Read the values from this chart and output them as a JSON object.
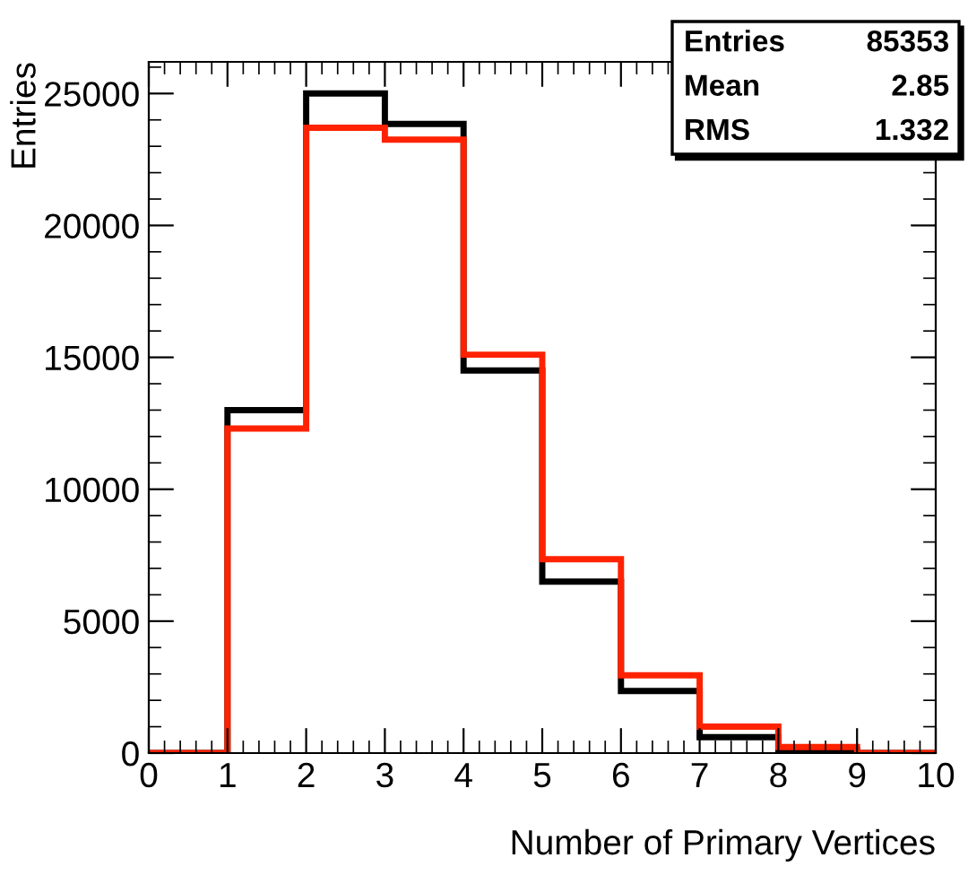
{
  "chart_data": {
    "type": "histogram",
    "xlabel": "Number of Primary Vertices",
    "ylabel": "Entries",
    "bins": [
      0,
      1,
      2,
      3,
      4,
      5,
      6,
      7,
      8,
      9,
      10
    ],
    "series": [
      {
        "color": "#000000",
        "values": [
          0,
          13000,
          25000,
          23850,
          14500,
          6500,
          2350,
          600,
          100,
          0
        ]
      },
      {
        "color": "#ff2200",
        "values": [
          0,
          12300,
          23700,
          23250,
          15100,
          7350,
          2950,
          1000,
          230,
          0
        ]
      }
    ],
    "xlim": [
      0,
      10
    ],
    "ylim": [
      0,
      26200
    ],
    "xticks": [
      0,
      1,
      2,
      3,
      4,
      5,
      6,
      7,
      8,
      9,
      10
    ],
    "yticks": [
      0,
      5000,
      10000,
      15000,
      20000,
      25000
    ],
    "annotations": [
      "Entries",
      "85353",
      "Mean",
      "2.85",
      "RMS",
      "1.332"
    ],
    "grid": false
  }
}
